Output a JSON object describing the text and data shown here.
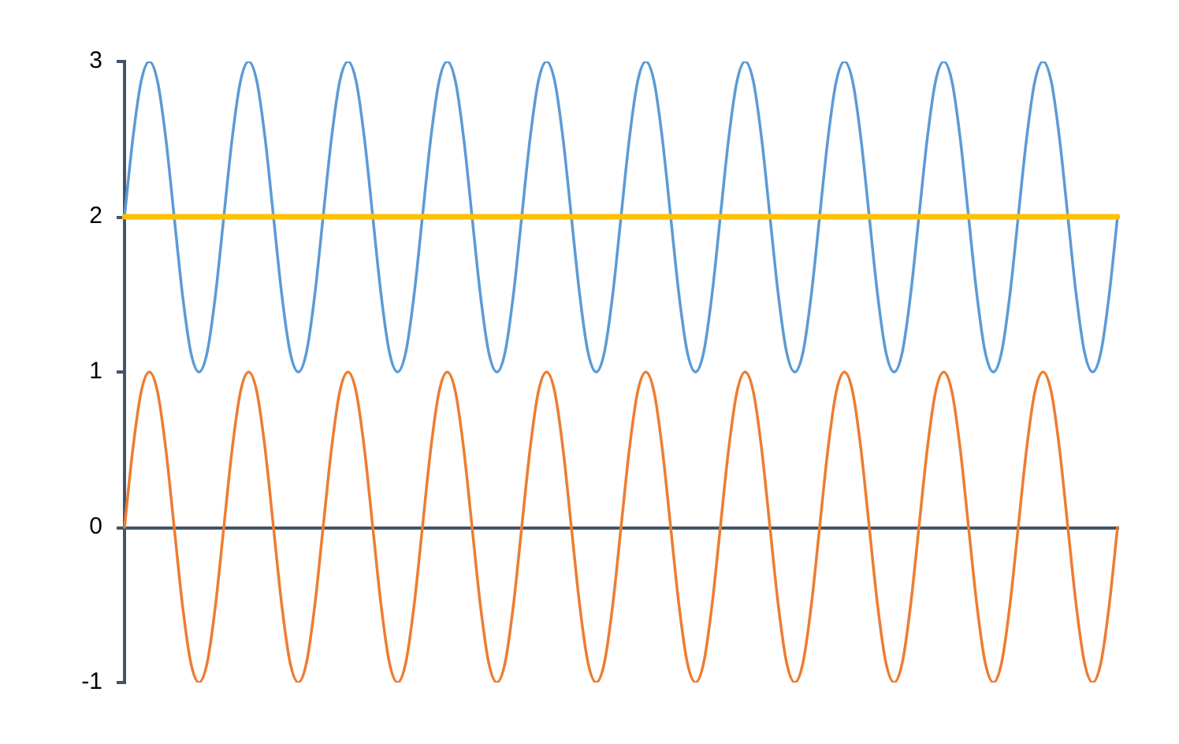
{
  "chart_data": {
    "type": "line",
    "categories": [
      null,
      null,
      null,
      null,
      null,
      null,
      null,
      null,
      null,
      null,
      null,
      null,
      null,
      null,
      null,
      null,
      null,
      null,
      null,
      null,
      null,
      null,
      null,
      null,
      null,
      null,
      null,
      null,
      null,
      null,
      null,
      null,
      null,
      null,
      null,
      null,
      null,
      null,
      null,
      null,
      null,
      null,
      null,
      null,
      null,
      null,
      null,
      null,
      null,
      null,
      null,
      null,
      null,
      null,
      null,
      null,
      null,
      null,
      null,
      null,
      null,
      null,
      null,
      null,
      null,
      null,
      null,
      null,
      null,
      null,
      null,
      null,
      null,
      null,
      null,
      null,
      null,
      null,
      null,
      null,
      null,
      null,
      null,
      null,
      null,
      null,
      null,
      null,
      null,
      null,
      null,
      null,
      null,
      null,
      null,
      null,
      null,
      null,
      null,
      null,
      null,
      null,
      null,
      null,
      null,
      null,
      null,
      null,
      null,
      null,
      null,
      null,
      null,
      null,
      null,
      null,
      null,
      null,
      null,
      null,
      null
    ],
    "series": [
      {
        "color": "#5b9bd5",
        "values": [
          2,
          2.5,
          2.87,
          3,
          2.87,
          2.5,
          2,
          1.5,
          1.13,
          1,
          1.13,
          1.5,
          2,
          2.5,
          2.87,
          3,
          2.87,
          2.5,
          2,
          1.5,
          1.13,
          1,
          1.13,
          1.5,
          2,
          2.5,
          2.87,
          3,
          2.87,
          2.5,
          2,
          1.5,
          1.13,
          1,
          1.13,
          1.5,
          2,
          2.5,
          2.87,
          3,
          2.87,
          2.5,
          2,
          1.5,
          1.13,
          1,
          1.13,
          1.5,
          2,
          2.5,
          2.87,
          3,
          2.87,
          2.5,
          2,
          1.5,
          1.13,
          1,
          1.13,
          1.5,
          2,
          2.5,
          2.87,
          3,
          2.87,
          2.5,
          2,
          1.5,
          1.13,
          1,
          1.13,
          1.5,
          2,
          2.5,
          2.87,
          3,
          2.87,
          2.5,
          2,
          1.5,
          1.13,
          1,
          1.13,
          1.5,
          2,
          2.5,
          2.87,
          3,
          2.87,
          2.5,
          2,
          1.5,
          1.13,
          1,
          1.13,
          1.5,
          2,
          2.5,
          2.87,
          3,
          2.87,
          2.5,
          2,
          1.5,
          1.13,
          1,
          1.13,
          1.5,
          2,
          2.5,
          2.87,
          3,
          2.87,
          2.5,
          2,
          1.5,
          1.13,
          1,
          1.13,
          1.5,
          2
        ]
      },
      {
        "color": "#ed7d31",
        "values": [
          0,
          0.5,
          0.87,
          1,
          0.87,
          0.5,
          0,
          -0.5,
          -0.87,
          -1,
          -0.87,
          -0.5,
          0,
          0.5,
          0.87,
          1,
          0.87,
          0.5,
          0,
          -0.5,
          -0.87,
          -1,
          -0.87,
          -0.5,
          0,
          0.5,
          0.87,
          1,
          0.87,
          0.5,
          0,
          -0.5,
          -0.87,
          -1,
          -0.87,
          -0.5,
          0,
          0.5,
          0.87,
          1,
          0.87,
          0.5,
          0,
          -0.5,
          -0.87,
          -1,
          -0.87,
          -0.5,
          0,
          0.5,
          0.87,
          1,
          0.87,
          0.5,
          0,
          -0.5,
          -0.87,
          -1,
          -0.87,
          -0.5,
          0,
          0.5,
          0.87,
          1,
          0.87,
          0.5,
          0,
          -0.5,
          -0.87,
          -1,
          -0.87,
          -0.5,
          0,
          0.5,
          0.87,
          1,
          0.87,
          0.5,
          0,
          -0.5,
          -0.87,
          -1,
          -0.87,
          -0.5,
          0,
          0.5,
          0.87,
          1,
          0.87,
          0.5,
          0,
          -0.5,
          -0.87,
          -1,
          -0.87,
          -0.5,
          0,
          0.5,
          0.87,
          1,
          0.87,
          0.5,
          0,
          -0.5,
          -0.87,
          -1,
          -0.87,
          -0.5,
          0,
          0.5,
          0.87,
          1,
          0.87,
          0.5,
          0,
          -0.5,
          -0.87,
          -1,
          -0.87,
          -0.5,
          0
        ]
      },
      {
        "color": "#ffc000",
        "values": [
          2,
          2,
          2,
          2,
          2,
          2,
          2,
          2,
          2,
          2,
          2,
          2,
          2,
          2,
          2,
          2,
          2,
          2,
          2,
          2,
          2,
          2,
          2,
          2,
          2,
          2,
          2,
          2,
          2,
          2,
          2,
          2,
          2,
          2,
          2,
          2,
          2,
          2,
          2,
          2,
          2,
          2,
          2,
          2,
          2,
          2,
          2,
          2,
          2,
          2,
          2,
          2,
          2,
          2,
          2,
          2,
          2,
          2,
          2,
          2,
          2,
          2,
          2,
          2,
          2,
          2,
          2,
          2,
          2,
          2,
          2,
          2,
          2,
          2,
          2,
          2,
          2,
          2,
          2,
          2,
          2,
          2,
          2,
          2,
          2,
          2,
          2,
          2,
          2,
          2,
          2,
          2,
          2,
          2,
          2,
          2,
          2,
          2,
          2,
          2,
          2,
          2,
          2,
          2,
          2,
          2,
          2,
          2,
          2,
          2,
          2,
          2,
          2,
          2,
          2,
          2,
          2,
          2,
          2,
          2,
          2
        ]
      }
    ],
    "ylim": [
      -1,
      3
    ],
    "yticks": [
      -1,
      0,
      1,
      2,
      3
    ],
    "tick_labels": "y",
    "marker": "none",
    "line_style": "solid",
    "legend": false
  }
}
